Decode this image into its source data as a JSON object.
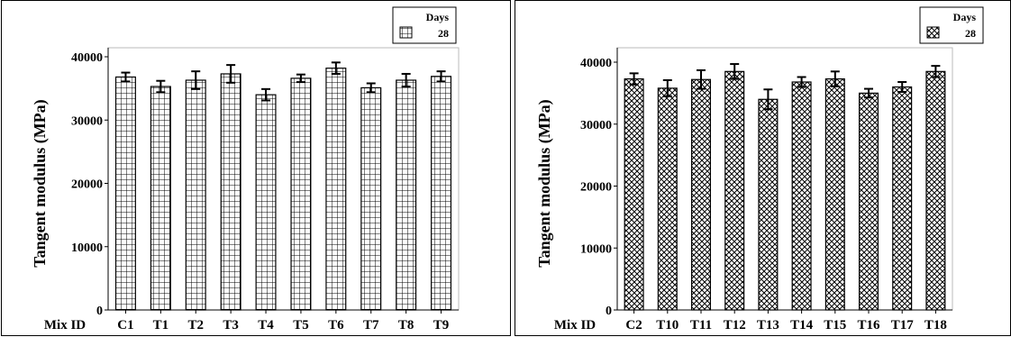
{
  "chart_data": [
    {
      "type": "bar",
      "title": "",
      "xlabel": "Mix ID",
      "ylabel": "Tangent modulus (MPa)",
      "ylim": [
        0,
        40000
      ],
      "yticks": [
        0,
        10000,
        20000,
        30000,
        40000
      ],
      "grid": false,
      "legend_title": "Days",
      "legend_position": "top-right",
      "pattern": "grid",
      "categories": [
        "C1",
        "T1",
        "T2",
        "T3",
        "T4",
        "T5",
        "T6",
        "T7",
        "T8",
        "T9"
      ],
      "series": [
        {
          "name": "28",
          "values": [
            36800,
            35300,
            36300,
            37300,
            34000,
            36600,
            38200,
            35100,
            36300,
            36900
          ],
          "errors": [
            700,
            900,
            1400,
            1400,
            900,
            600,
            900,
            700,
            1000,
            800
          ]
        }
      ]
    },
    {
      "type": "bar",
      "title": "",
      "xlabel": "Mix ID",
      "ylabel": "Tangent modulus (MPa)",
      "ylim": [
        0,
        40000
      ],
      "yticks": [
        0,
        10000,
        20000,
        30000,
        40000
      ],
      "grid": false,
      "legend_title": "Days",
      "legend_position": "top-right",
      "pattern": "crosshatch",
      "categories": [
        "C2",
        "T10",
        "T11",
        "T12",
        "T13",
        "T14",
        "T15",
        "T16",
        "T17",
        "T18"
      ],
      "series": [
        {
          "name": "28",
          "values": [
            37300,
            35800,
            37200,
            38500,
            34000,
            36800,
            37300,
            35000,
            36000,
            38500
          ],
          "errors": [
            900,
            1300,
            1500,
            1200,
            1600,
            800,
            1200,
            700,
            800,
            900
          ]
        }
      ]
    }
  ]
}
